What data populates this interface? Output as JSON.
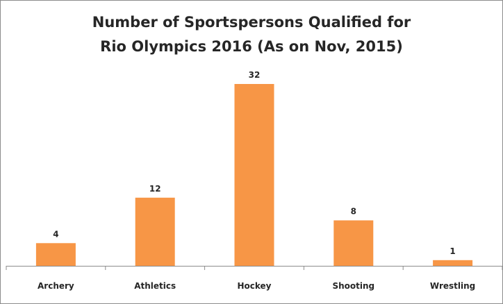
{
  "chart_data": {
    "type": "bar",
    "title_lines": [
      "Number of Sportspersons Qualified for",
      "Rio Olympics 2016 (As on Nov, 2015)"
    ],
    "categories": [
      "Archery",
      "Athletics",
      "Hockey",
      "Shooting",
      "Wrestling"
    ],
    "values": [
      4,
      12,
      32,
      8,
      1
    ],
    "ylim": [
      0,
      32
    ],
    "grid": false,
    "legend": "none",
    "bar_color": "#F79646",
    "axis_color": "#8c8c8c"
  }
}
